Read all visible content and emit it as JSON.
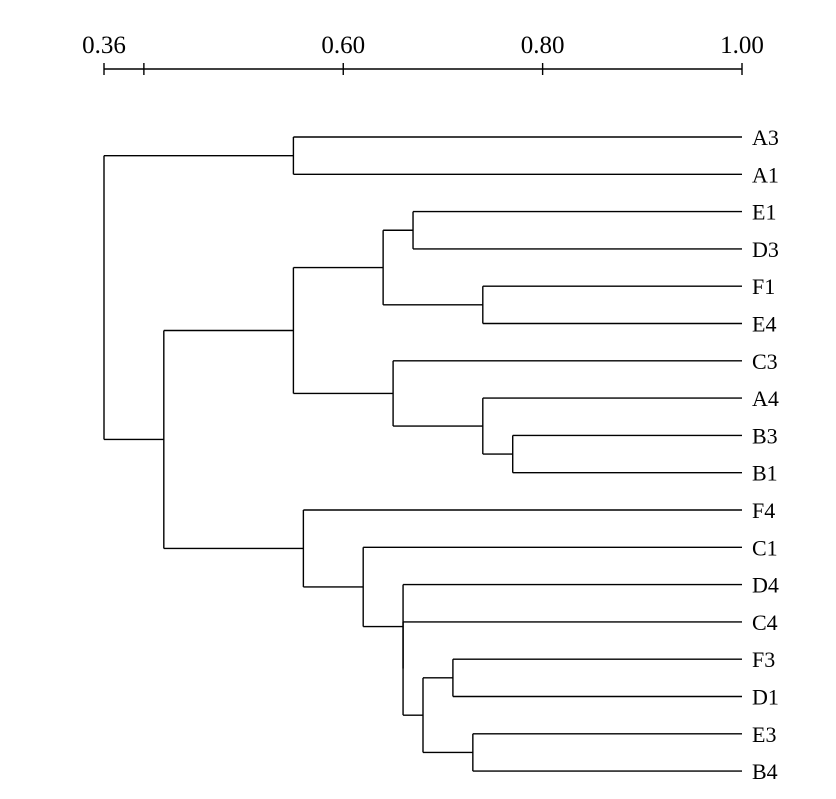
{
  "chart_data": {
    "type": "dendrogram",
    "axis": {
      "ticks": [
        0.36,
        0.4,
        0.6,
        0.8,
        1.0
      ],
      "tick_labels": [
        "0.36",
        "",
        "0.60",
        "0.80",
        "1.00"
      ],
      "range": [
        0.36,
        1.0
      ]
    },
    "leaves": [
      "A3",
      "A1",
      "E1",
      "D3",
      "F1",
      "E4",
      "C3",
      "A4",
      "B3",
      "B1",
      "F4",
      "C1",
      "D4",
      "C4",
      "F3",
      "D1",
      "E3",
      "B4"
    ],
    "merges": [
      {
        "id": "m1",
        "children": [
          "A3",
          "A1"
        ],
        "height": 0.55
      },
      {
        "id": "m2",
        "children": [
          "E1",
          "D3"
        ],
        "height": 0.67
      },
      {
        "id": "m3",
        "children": [
          "F1",
          "E4"
        ],
        "height": 0.74
      },
      {
        "id": "m4",
        "children": [
          "m2",
          "m3"
        ],
        "height": 0.64
      },
      {
        "id": "m5",
        "children": [
          "B3",
          "B1"
        ],
        "height": 0.77
      },
      {
        "id": "m6",
        "children": [
          "A4",
          "m5"
        ],
        "height": 0.74
      },
      {
        "id": "m7",
        "children": [
          "C3",
          "m6"
        ],
        "height": 0.65
      },
      {
        "id": "m8",
        "children": [
          "m4",
          "m7"
        ],
        "height": 0.55
      },
      {
        "id": "m9",
        "children": [
          "F3",
          "D1"
        ],
        "height": 0.71
      },
      {
        "id": "m10",
        "children": [
          "E3",
          "B4"
        ],
        "height": 0.73
      },
      {
        "id": "m11",
        "children": [
          "m9",
          "m10"
        ],
        "height": 0.68
      },
      {
        "id": "m12",
        "children": [
          "C4",
          "m11"
        ],
        "height": 0.66
      },
      {
        "id": "m13",
        "children": [
          "D4",
          "m12"
        ],
        "height": 0.66
      },
      {
        "id": "m14",
        "children": [
          "C1",
          "m13"
        ],
        "height": 0.62
      },
      {
        "id": "m15",
        "children": [
          "F4",
          "m14"
        ],
        "height": 0.56
      },
      {
        "id": "m16",
        "children": [
          "m8",
          "m15"
        ],
        "height": 0.42
      },
      {
        "id": "m17",
        "children": [
          "m1",
          "m16"
        ],
        "height": 0.36
      }
    ]
  }
}
